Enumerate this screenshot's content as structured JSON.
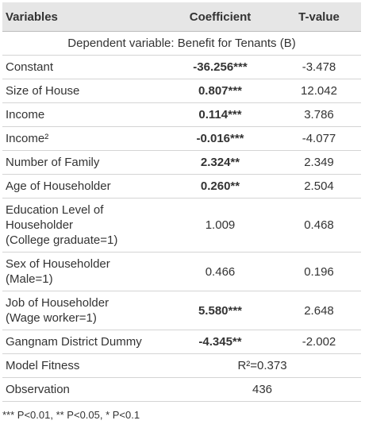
{
  "header": {
    "variable": "Variables",
    "coefficient": "Coefficient",
    "t_value": "T-value"
  },
  "subheader": "Dependent variable: Benefit for Tenants (B)",
  "rows": [
    {
      "variable": [
        "Constant"
      ],
      "coefficient": "-36.256***",
      "t_value": "-3.478",
      "bold": true
    },
    {
      "variable": [
        "Size of House"
      ],
      "coefficient": "0.807***",
      "t_value": "12.042",
      "bold": true
    },
    {
      "variable": [
        "Income"
      ],
      "coefficient": "0.114***",
      "t_value": "3.786",
      "bold": true
    },
    {
      "variable": [
        "Income²"
      ],
      "coefficient": "-0.016***",
      "t_value": "-4.077",
      "bold": true
    },
    {
      "variable": [
        "Number of Family"
      ],
      "coefficient": "2.324**",
      "t_value": "2.349",
      "bold": true
    },
    {
      "variable": [
        "Age of Householder"
      ],
      "coefficient": "0.260**",
      "t_value": "2.504",
      "bold": true
    },
    {
      "variable": [
        "Education Level of",
        "Householder",
        "(College graduate=1)"
      ],
      "coefficient": "1.009",
      "t_value": "0.468",
      "bold": false
    },
    {
      "variable": [
        "Sex of Householder",
        "(Male=1)"
      ],
      "coefficient": "0.466",
      "t_value": "0.196",
      "bold": false
    },
    {
      "variable": [
        "Job of Householder",
        "(Wage worker=1)"
      ],
      "coefficient": "5.580***",
      "t_value": "2.648",
      "bold": true
    },
    {
      "variable": [
        "Gangnam District Dummy"
      ],
      "coefficient": "-4.345**",
      "t_value": "-2.002",
      "bold": true
    },
    {
      "variable": [
        "Model Fitness"
      ],
      "value": "R²=0.373"
    },
    {
      "variable": [
        "Observation"
      ],
      "value": "436"
    }
  ],
  "footnote": "*** P<0.01, ** P<0.05, * P<0.1"
}
